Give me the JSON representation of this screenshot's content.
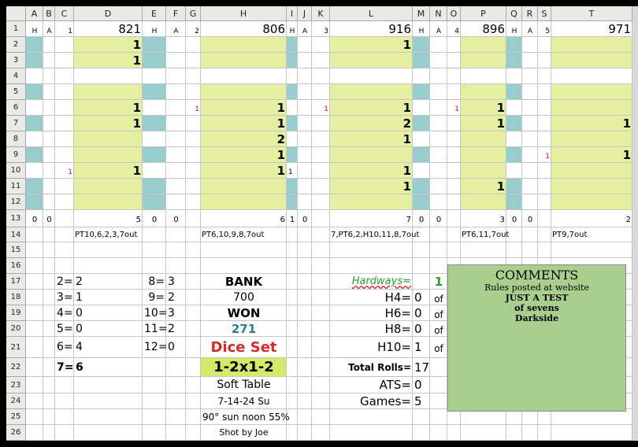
{
  "columns": [
    "A",
    "B",
    "C",
    "D",
    "E",
    "F",
    "G",
    "H",
    "I",
    "J",
    "K",
    "L",
    "M",
    "N",
    "O",
    "P",
    "Q",
    "R",
    "S",
    "T"
  ],
  "rows": [
    1,
    2,
    3,
    4,
    5,
    6,
    7,
    8,
    9,
    10,
    11,
    12,
    13,
    14,
    15,
    16,
    17,
    18,
    19,
    20,
    21,
    22,
    23,
    24,
    25,
    26
  ],
  "cells": {
    "A1": "H",
    "B1": "A",
    "C1": "1",
    "D1": "821",
    "E1": "H",
    "F1": "A",
    "G1": "2",
    "H1": "806",
    "I1": "H",
    "J1": "A",
    "K1": "3",
    "L1": "916",
    "M1": "H",
    "N1": "A",
    "O1": "4",
    "P1": "896",
    "Q1": "H",
    "R1": "A",
    "S1": "5",
    "T1": "971",
    "D2": "1",
    "L2": "1",
    "D3": "1",
    "G6": "1",
    "D6": "1",
    "H6": "1",
    "K6": "1",
    "L6": "1",
    "O6": "1",
    "P6": "1",
    "D7": "1",
    "H7": "1",
    "L7": "2",
    "P7": "1",
    "T7": "1",
    "H8": "2",
    "L8": "1",
    "H9": "1",
    "S9": "1",
    "T9": "1",
    "C10": "1",
    "D10": "1",
    "H10": "1",
    "I10": "1",
    "L10": "1",
    "L11": "1",
    "P11": "1",
    "A13": "0",
    "B13": "0",
    "D13": "5",
    "E13": "0",
    "F13": "0",
    "H13": "6",
    "I13": "1",
    "J13": "0",
    "L13": "7",
    "M13": "0",
    "N13": "0",
    "P13": "3",
    "Q13": "0",
    "R13": "0",
    "T13": "2",
    "D14": "PT10,6,2,3,7out",
    "H14": "PT6,10,9,8,7out",
    "L14": "7,PT6,2,H10,11,8,7out",
    "P14": "PT6,11,7out",
    "T14": "PT9,7out",
    "C17": "2=",
    "D17": "2",
    "E17": "8=",
    "F17": "3",
    "H17": "BANK",
    "L17": "Hardways=",
    "N17": "1",
    "C18": "3=",
    "D18": "1",
    "E18": "9=",
    "F18": "2",
    "H18": "700",
    "L18": "H4=",
    "M18": "0",
    "N18": "of",
    "C19": "4=",
    "D19": "0",
    "E19": "10=",
    "F19": "3",
    "H19": "WON",
    "L19": "H6=",
    "M19": "0",
    "N19": "of",
    "C20": "5=",
    "D20": "0",
    "E20": "11=",
    "F20": "2",
    "H20": "271",
    "L20": "H8=",
    "M20": "0",
    "N20": "of",
    "C21": "6=",
    "D21": "4",
    "E21": "12=",
    "F21": "0",
    "H21": "Dice Set",
    "L21": "H10=",
    "M21": "1",
    "N21": "of",
    "C22": "7=",
    "D22": "6",
    "H22": "1-2x1-2",
    "L22": "Total Rolls=",
    "M22": "17",
    "H23": "Soft Table",
    "L23": "ATS=",
    "M23": "0",
    "H24": "7-14-24 Su",
    "L24": "Games=",
    "M24": "5",
    "H25": "90° sun noon 55%",
    "H26": "Shot by Joe"
  },
  "comments": {
    "title": "COMMENTS",
    "lines": [
      "Rules posted at website",
      "JUST A TEST",
      "of sevens",
      "Darkside"
    ]
  }
}
